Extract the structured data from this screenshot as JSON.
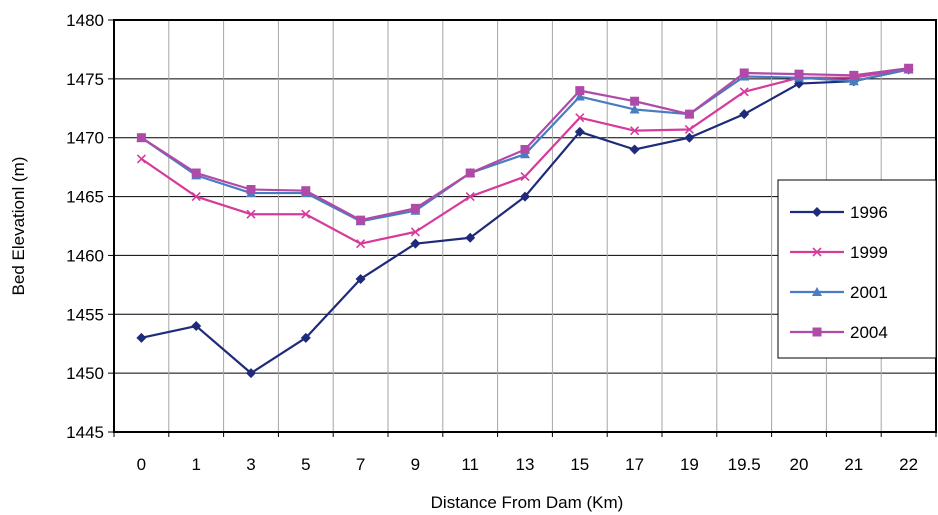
{
  "chart_data": {
    "type": "line",
    "title": "",
    "xlabel": "Distance From Dam (Km)",
    "ylabel": "Bed Elevationl (m)",
    "categories": [
      "0",
      "1",
      "3",
      "5",
      "7",
      "9",
      "11",
      "13",
      "15",
      "17",
      "19",
      "19.5",
      "20",
      "21",
      "22"
    ],
    "ylim": [
      1445,
      1480
    ],
    "yticks": [
      "1445",
      "1450",
      "1455",
      "1460",
      "1465",
      "1470",
      "1475",
      "1480"
    ],
    "grid": true,
    "legend_position": "right",
    "series": [
      {
        "name": "1996",
        "color": "#1f2a7a",
        "marker": "diamond",
        "values": [
          1453,
          1454,
          1450,
          1453,
          1458,
          1461,
          1461.5,
          1465,
          1470.5,
          1469,
          1470,
          1472,
          1474.6,
          1474.8,
          1475.8
        ]
      },
      {
        "name": "1999",
        "color": "#d63a9a",
        "marker": "x",
        "values": [
          1468.2,
          1465,
          1463.5,
          1463.5,
          1461,
          1462,
          1465,
          1466.7,
          1471.7,
          1470.6,
          1470.7,
          1473.9,
          1475.1,
          1475.1,
          1475.9
        ]
      },
      {
        "name": "2001",
        "color": "#4a7cc0",
        "marker": "triangle",
        "values": [
          1470,
          1466.8,
          1465.3,
          1465.3,
          1462.9,
          1463.8,
          1467,
          1468.6,
          1473.5,
          1472.4,
          1472,
          1475.2,
          1475.1,
          1474.8,
          1475.8
        ]
      },
      {
        "name": "2004",
        "color": "#b04aa8",
        "marker": "square",
        "values": [
          1470,
          1467,
          1465.6,
          1465.5,
          1463,
          1464,
          1467,
          1469,
          1474,
          1473.1,
          1472,
          1475.5,
          1475.4,
          1475.3,
          1475.9
        ]
      }
    ]
  }
}
